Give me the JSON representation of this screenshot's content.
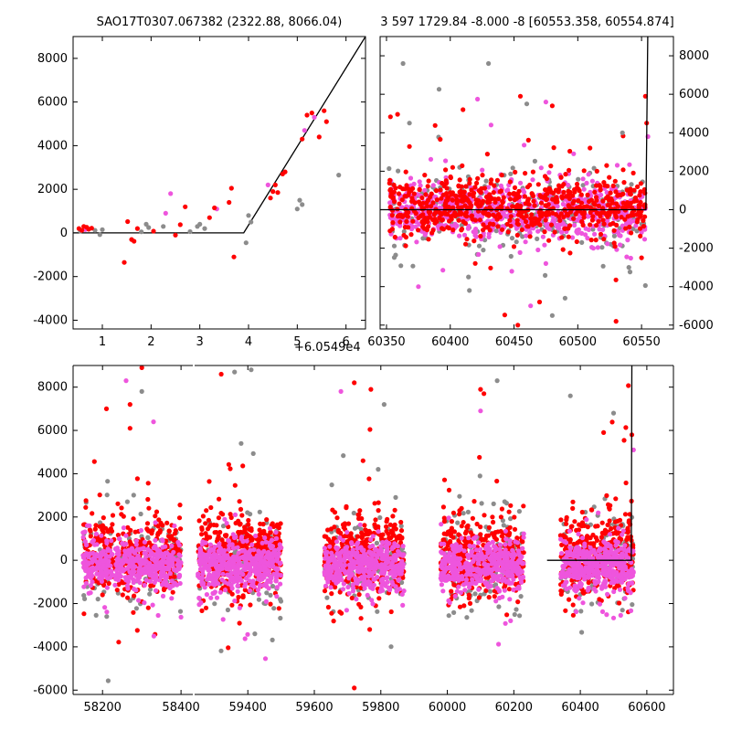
{
  "colors": {
    "red": "#ff0000",
    "magenta": "#ee55dd",
    "gray": "#8c8c8c",
    "line": "#000000"
  },
  "chart_data": [
    {
      "type": "scatter",
      "title": "SAO17T0307.067382 (2322.88, 8066.04)",
      "xlabel": "",
      "ylabel": "",
      "xlim": [
        0.4,
        6.4
      ],
      "ylim": [
        -4400,
        9000
      ],
      "x_offset_label": "+6.0549e4",
      "xticks": [
        1,
        2,
        3,
        4,
        5,
        6
      ],
      "yticks": [
        -4000,
        -2000,
        0,
        2000,
        4000,
        6000,
        8000
      ],
      "yaxis_side": "left",
      "grid": false,
      "model_line": {
        "x": [
          0.4,
          3.9,
          6.4
        ],
        "y": [
          0,
          0,
          9000
        ]
      },
      "series": [
        {
          "color": "red",
          "points": [
            [
              0.52,
              200
            ],
            [
              0.58,
              120
            ],
            [
              0.62,
              300
            ],
            [
              0.68,
              260
            ],
            [
              0.72,
              170
            ],
            [
              0.78,
              220
            ],
            [
              1.45,
              -1350
            ],
            [
              1.52,
              520
            ],
            [
              1.6,
              -300
            ],
            [
              1.65,
              -380
            ],
            [
              1.72,
              200
            ],
            [
              2.05,
              80
            ],
            [
              2.5,
              -100
            ],
            [
              2.6,
              380
            ],
            [
              2.7,
              1200
            ],
            [
              3.2,
              700
            ],
            [
              3.3,
              1150
            ],
            [
              3.6,
              1400
            ],
            [
              3.65,
              2050
            ],
            [
              3.7,
              -1100
            ],
            [
              4.45,
              1600
            ],
            [
              4.5,
              1900
            ],
            [
              4.55,
              2200
            ],
            [
              4.6,
              1850
            ],
            [
              4.7,
              2700
            ],
            [
              4.75,
              2800
            ],
            [
              5.1,
              4300
            ],
            [
              5.2,
              5400
            ],
            [
              5.3,
              5500
            ],
            [
              5.45,
              4400
            ],
            [
              5.55,
              5600
            ],
            [
              5.6,
              5100
            ]
          ]
        },
        {
          "color": "magenta",
          "points": [
            [
              0.65,
              150
            ],
            [
              2.3,
              900
            ],
            [
              2.4,
              1800
            ],
            [
              3.35,
              1100
            ],
            [
              4.4,
              2200
            ],
            [
              5.15,
              4700
            ],
            [
              5.35,
              5300
            ]
          ]
        },
        {
          "color": "gray",
          "points": [
            [
              0.55,
              80
            ],
            [
              0.85,
              120
            ],
            [
              0.95,
              -80
            ],
            [
              1.0,
              150
            ],
            [
              1.8,
              50
            ],
            [
              1.9,
              400
            ],
            [
              1.95,
              250
            ],
            [
              2.25,
              300
            ],
            [
              2.8,
              60
            ],
            [
              2.95,
              300
            ],
            [
              3.0,
              400
            ],
            [
              3.1,
              200
            ],
            [
              4.0,
              800
            ],
            [
              4.05,
              500
            ],
            [
              3.95,
              -450
            ],
            [
              5.0,
              1100
            ],
            [
              5.05,
              1500
            ],
            [
              5.1,
              1300
            ],
            [
              5.85,
              2650
            ]
          ]
        }
      ]
    },
    {
      "type": "scatter",
      "title": "3 597 1729.84 -8.000 -8 [60553.358, 60554.874]",
      "xlabel": "",
      "ylabel": "",
      "xlim": [
        60345,
        60575
      ],
      "ylim": [
        -6200,
        9000
      ],
      "xticks": [
        60350,
        60400,
        60450,
        60500,
        60550
      ],
      "yticks": [
        -6000,
        -4000,
        -2000,
        0,
        2000,
        4000,
        6000,
        8000
      ],
      "yaxis_side": "right",
      "grid": false,
      "model_line": {
        "x": [
          60345,
          60553.4,
          60554.9
        ],
        "y": [
          0,
          0,
          9000
        ]
      },
      "outliers": {
        "red": [
          [
            60380,
            1800
          ],
          [
            60410,
            5200
          ],
          [
            60455,
            5900
          ],
          [
            60480,
            5400
          ],
          [
            60515,
            2000
          ],
          [
            60530,
            -5800
          ],
          [
            60553,
            5900
          ],
          [
            60554,
            4500
          ],
          [
            60550,
            -2500
          ],
          [
            60453,
            -6000
          ],
          [
            60470,
            -4800
          ]
        ],
        "magenta": [
          [
            60475,
            5600
          ],
          [
            60432,
            4400
          ],
          [
            60375,
            -4000
          ],
          [
            60555,
            3800
          ],
          [
            60463,
            -5000
          ]
        ],
        "gray": [
          [
            60363,
            7600
          ],
          [
            60430,
            7600
          ],
          [
            60368,
            4500
          ],
          [
            60460,
            5500
          ],
          [
            60480,
            -5500
          ],
          [
            60535,
            4000
          ],
          [
            60540,
            -3000
          ],
          [
            60415,
            -4200
          ],
          [
            60490,
            -4600
          ]
        ]
      }
    },
    {
      "type": "scatter",
      "title": "",
      "xlabel": "",
      "ylabel": "",
      "xlim": [
        58125,
        60680
      ],
      "ylim": [
        -6200,
        9000
      ],
      "xticks": [
        58200,
        58400,
        59400,
        59600,
        59800,
        60000,
        60200,
        60400,
        60600
      ],
      "yticks": [
        -6000,
        -4000,
        -2000,
        0,
        2000,
        4000,
        6000,
        8000
      ],
      "yaxis_side": "left",
      "grid": false,
      "broken_axis": {
        "panel_a_xlim": [
          58125,
          58430
        ],
        "panel_b_xlim": [
          59240,
          60680
        ]
      },
      "clusters": [
        {
          "x_range": [
            58150,
            58400
          ]
        },
        {
          "x_range": [
            59250,
            59500
          ]
        },
        {
          "x_range": [
            59630,
            59870
          ]
        },
        {
          "x_range": [
            59980,
            60230
          ]
        },
        {
          "x_range": [
            60340,
            60560
          ]
        }
      ],
      "model_line": {
        "x": [
          60300,
          60553.4,
          60554.9
        ],
        "y": [
          0,
          0,
          9000
        ]
      },
      "outliers": {
        "red": [
          [
            58210,
            7000
          ],
          [
            58270,
            7200
          ],
          [
            58270,
            6100
          ],
          [
            58300,
            8900
          ],
          [
            59320,
            8600
          ],
          [
            59720,
            8200
          ],
          [
            59770,
            7900
          ],
          [
            60100,
            7900
          ],
          [
            60110,
            7700
          ],
          [
            60470,
            5900
          ],
          [
            60555,
            5800
          ],
          [
            59720,
            -5900
          ]
        ],
        "magenta": [
          [
            58260,
            8300
          ],
          [
            58330,
            6400
          ],
          [
            59680,
            7800
          ],
          [
            60100,
            6900
          ],
          [
            60560,
            5100
          ]
        ],
        "gray": [
          [
            58300,
            7800
          ],
          [
            59360,
            8700
          ],
          [
            59410,
            8800
          ],
          [
            59810,
            7200
          ],
          [
            60150,
            8300
          ],
          [
            60370,
            7600
          ],
          [
            59380,
            5400
          ],
          [
            60500,
            6800
          ]
        ]
      }
    }
  ]
}
